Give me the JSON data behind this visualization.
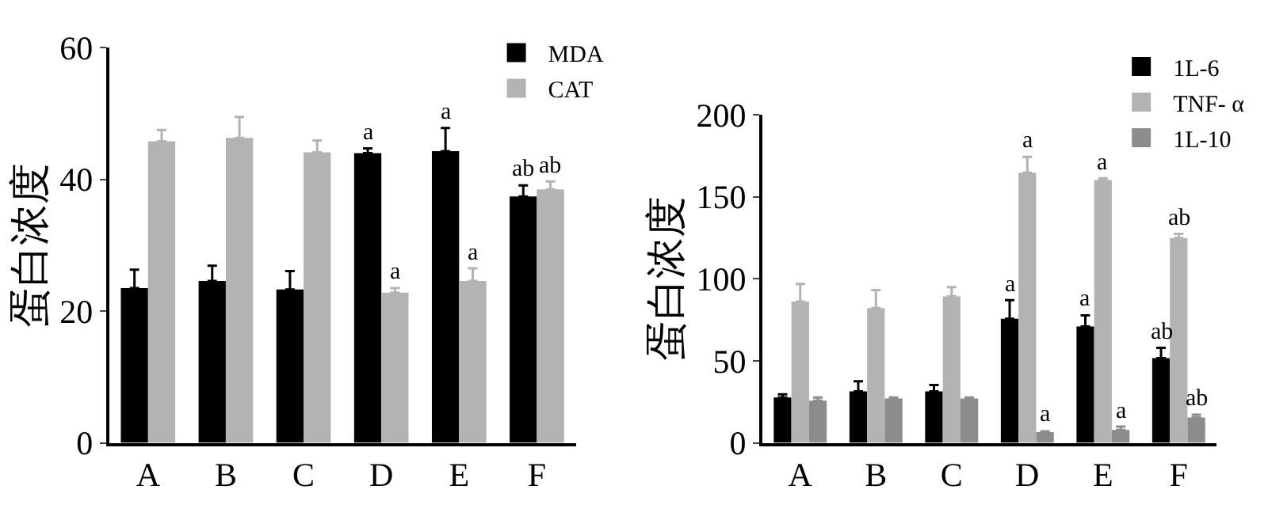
{
  "chart_data": [
    {
      "type": "bar",
      "ylabel": "蛋白浓度",
      "categories": [
        "A",
        "B",
        "C",
        "D",
        "E",
        "F"
      ],
      "ylim": [
        0,
        60
      ],
      "yticks": [
        0,
        20,
        40,
        60
      ],
      "legend": "top right",
      "series": [
        {
          "name": "MDA",
          "color": "#000000",
          "values": [
            23.5,
            24.6,
            23.3,
            44.0,
            44.3,
            37.4
          ],
          "errors": [
            [
              23.5,
              26.3
            ],
            [
              24.6,
              26.9
            ],
            [
              23.3,
              26.1
            ],
            [
              44.0,
              44.7
            ],
            [
              44.3,
              47.8
            ],
            [
              37.4,
              39.1
            ]
          ],
          "value_labels": [
            null,
            null,
            null,
            "a",
            "a",
            "ab"
          ]
        },
        {
          "name": "CAT",
          "color": "#b3b3b3",
          "values": [
            45.8,
            46.3,
            44.1,
            22.8,
            24.6,
            38.5
          ],
          "errors": [
            [
              45.8,
              47.5
            ],
            [
              46.3,
              49.5
            ],
            [
              44.1,
              45.9
            ],
            [
              22.8,
              23.5
            ],
            [
              24.6,
              26.5
            ],
            [
              38.5,
              39.7
            ]
          ],
          "value_labels": [
            null,
            null,
            null,
            "a",
            "a",
            "ab"
          ]
        }
      ]
    },
    {
      "type": "bar",
      "ylabel": "蛋白浓度",
      "categories": [
        "A",
        "B",
        "C",
        "D",
        "E",
        "F"
      ],
      "ylim": [
        0,
        200
      ],
      "yticks": [
        0,
        50,
        100,
        150,
        200
      ],
      "legend": "top right",
      "series": [
        {
          "name": "1L-6",
          "color": "#000000",
          "values": [
            27.7,
            31.4,
            31.4,
            75.7,
            70.9,
            51.7
          ],
          "errors": [
            [
              27.7,
              29.6
            ],
            [
              31.4,
              37.6
            ],
            [
              31.4,
              35.3
            ],
            [
              75.7,
              87.0
            ],
            [
              70.9,
              77.7
            ],
            [
              51.7,
              57.9
            ]
          ],
          "value_labels": [
            null,
            null,
            null,
            "a",
            "a",
            "ab"
          ]
        },
        {
          "name": "TNF- α",
          "color": "#b3b3b3",
          "values": [
            86.2,
            82.2,
            89.3,
            164.7,
            160.2,
            124.9
          ],
          "errors": [
            [
              86.2,
              96.9
            ],
            [
              82.2,
              93.2
            ],
            [
              89.3,
              94.9
            ],
            [
              164.7,
              174.3
            ],
            [
              160.2,
              161.3
            ],
            [
              124.9,
              127.4
            ]
          ],
          "value_labels": [
            null,
            null,
            null,
            "a",
            "a",
            "ab"
          ]
        },
        {
          "name": "1L-10",
          "color": "#8c8c8c",
          "values": [
            25.7,
            27.1,
            27.1,
            6.5,
            7.9,
            15.5
          ],
          "errors": [
            [
              25.7,
              27.7
            ],
            [
              27.1,
              27.7
            ],
            [
              27.1,
              27.7
            ],
            [
              6.5,
              7.1
            ],
            [
              7.9,
              9.9
            ],
            [
              15.5,
              17.2
            ]
          ],
          "value_labels": [
            null,
            null,
            null,
            "a",
            "a",
            "ab"
          ]
        }
      ]
    }
  ]
}
